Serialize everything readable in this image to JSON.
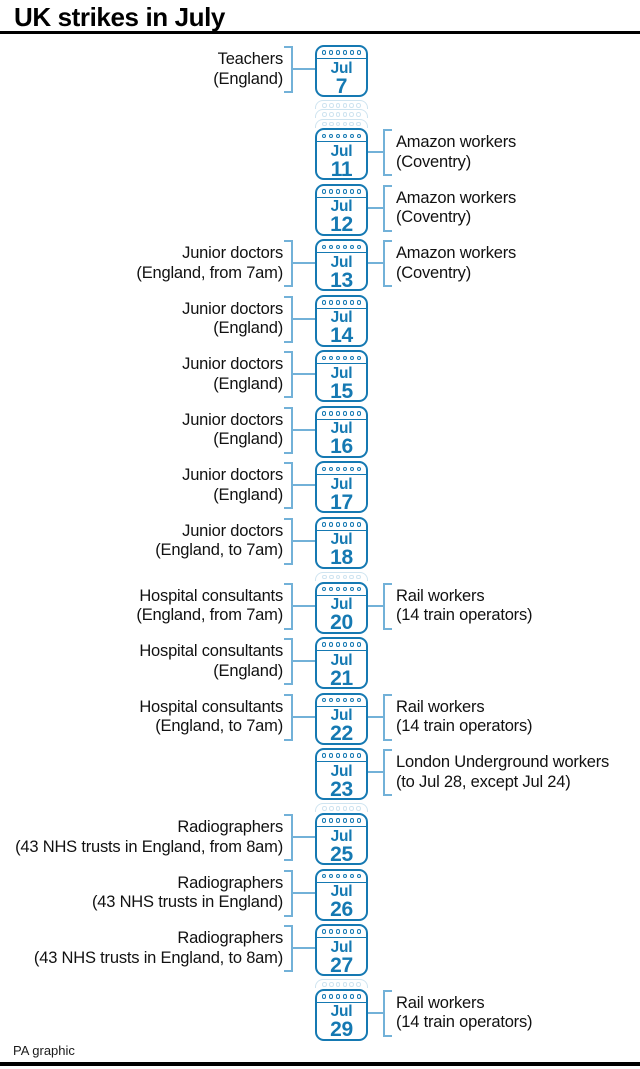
{
  "title": "UK strikes in July",
  "footer": "PA graphic",
  "calendar": {
    "month_label": "Jul"
  },
  "colors": {
    "calendar_blue": "#1579b2",
    "bracket_blue": "#72b1d8",
    "ghost_blue": "#cfe4f0",
    "text_black": "#111111"
  },
  "entries": [
    {
      "day": 7,
      "left": [
        "Teachers",
        "(England)"
      ],
      "right": null
    },
    {
      "day": 11,
      "left": null,
      "right": [
        "Amazon workers",
        "(Coventry)"
      ]
    },
    {
      "day": 12,
      "left": null,
      "right": [
        "Amazon workers",
        "(Coventry)"
      ]
    },
    {
      "day": 13,
      "left": [
        "Junior doctors",
        "(England, from 7am)"
      ],
      "right": [
        "Amazon workers",
        "(Coventry)"
      ]
    },
    {
      "day": 14,
      "left": [
        "Junior doctors",
        "(England)"
      ],
      "right": null
    },
    {
      "day": 15,
      "left": [
        "Junior doctors",
        "(England)"
      ],
      "right": null
    },
    {
      "day": 16,
      "left": [
        "Junior doctors",
        "(England)"
      ],
      "right": null
    },
    {
      "day": 17,
      "left": [
        "Junior doctors",
        "(England)"
      ],
      "right": null
    },
    {
      "day": 18,
      "left": [
        "Junior doctors",
        "(England, to 7am)"
      ],
      "right": null
    },
    {
      "day": 20,
      "left": [
        "Hospital consultants",
        "(England, from 7am)"
      ],
      "right": [
        "Rail workers",
        "(14 train operators)"
      ]
    },
    {
      "day": 21,
      "left": [
        "Hospital consultants",
        "(England)"
      ],
      "right": null
    },
    {
      "day": 22,
      "left": [
        "Hospital consultants",
        "(England, to 7am)"
      ],
      "right": [
        "Rail workers",
        "(14 train operators)"
      ]
    },
    {
      "day": 23,
      "left": null,
      "right": [
        "London Underground workers",
        "(to Jul 28, except Jul 24)"
      ]
    },
    {
      "day": 25,
      "left": [
        "Radiographers",
        "(43 NHS trusts in England, from 8am)"
      ],
      "right": null
    },
    {
      "day": 26,
      "left": [
        "Radiographers",
        "(43 NHS trusts in England)"
      ],
      "right": null
    },
    {
      "day": 27,
      "left": [
        "Radiographers",
        "(43 NHS trusts in England, to 8am)"
      ],
      "right": null
    },
    {
      "day": 29,
      "left": null,
      "right": [
        "Rail workers",
        "(14 train operators)"
      ]
    }
  ]
}
